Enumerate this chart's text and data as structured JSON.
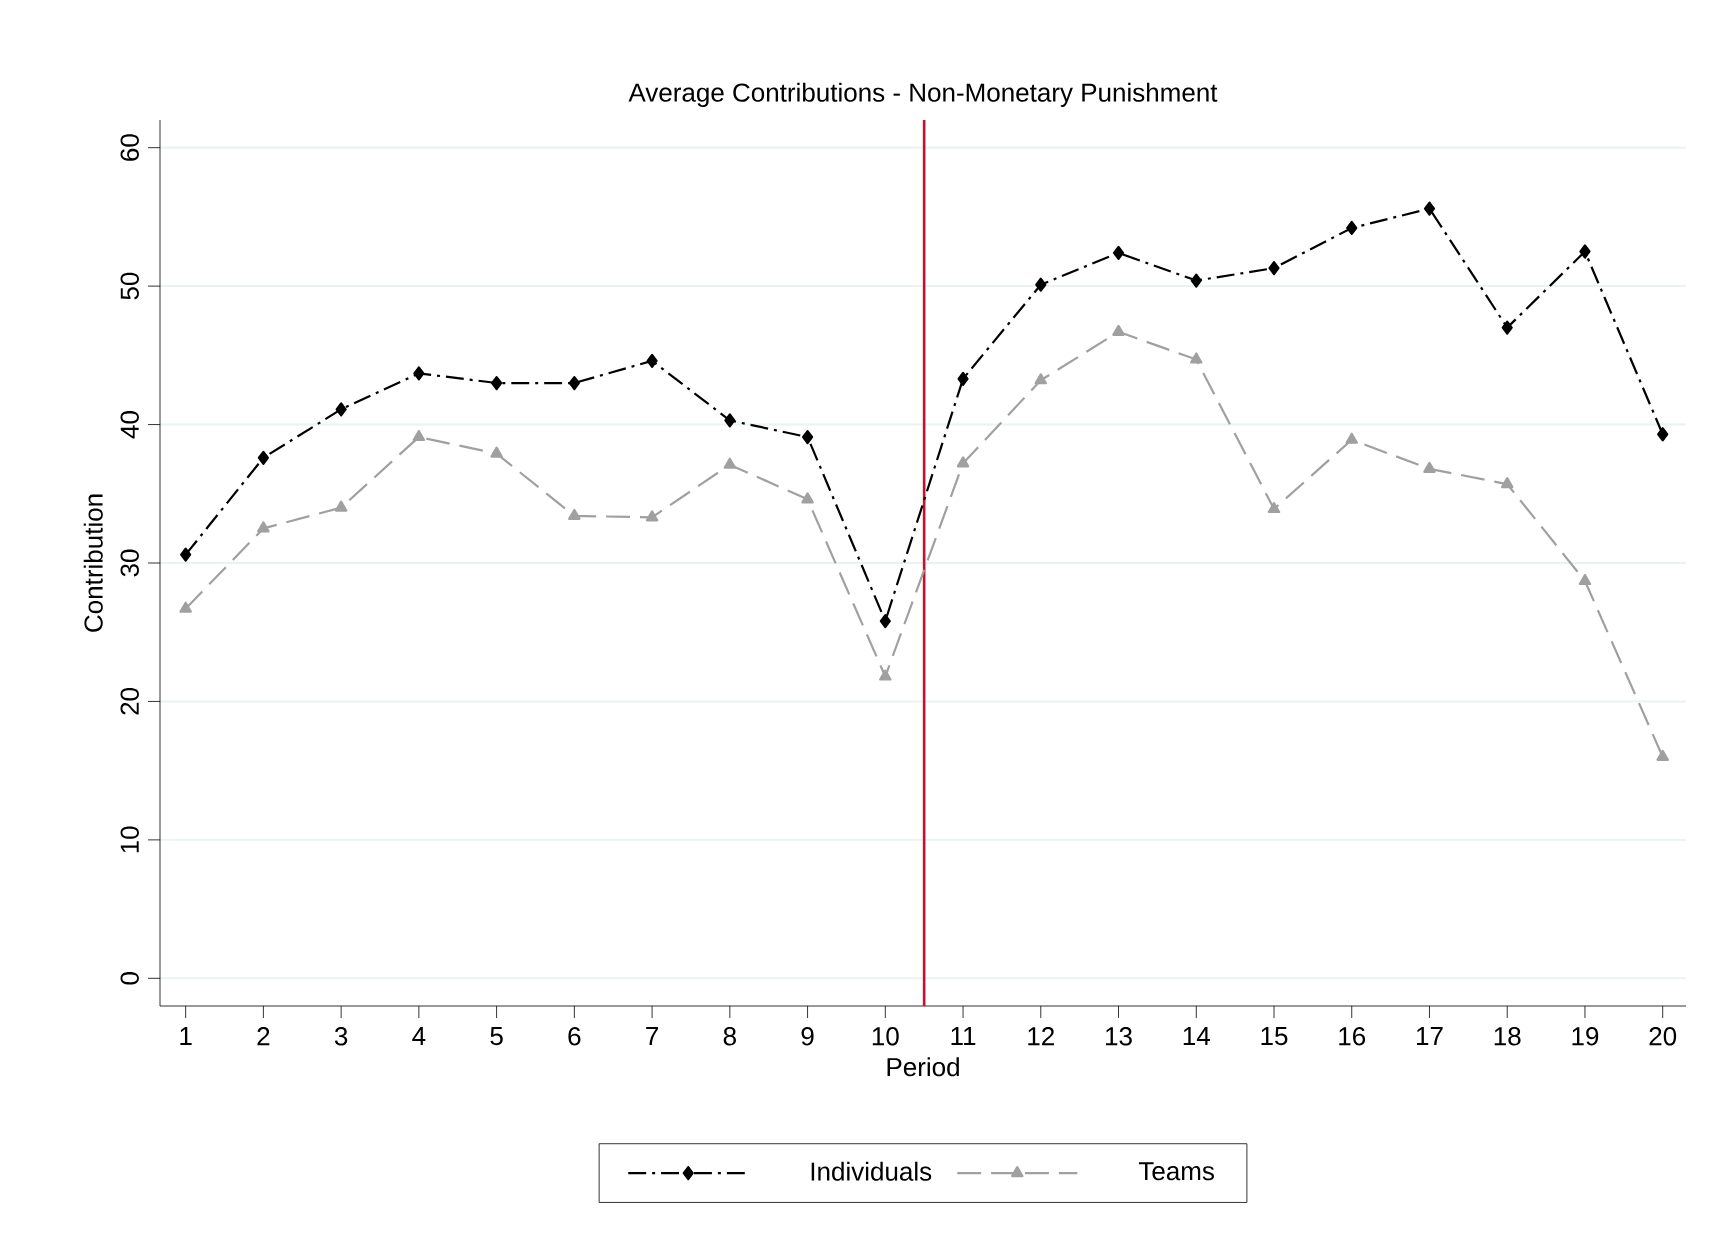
{
  "chart_data": {
    "type": "line",
    "title": "Average Contributions - Non-Monetary Punishment",
    "xlabel": "Period",
    "ylabel": "Contribution",
    "x": [
      1,
      2,
      3,
      4,
      5,
      6,
      7,
      8,
      9,
      10,
      11,
      12,
      13,
      14,
      15,
      16,
      17,
      18,
      19,
      20
    ],
    "series": [
      {
        "name": "Individuals",
        "color": "#000000",
        "marker": "diamond",
        "line_style": "dashdot",
        "values": [
          30.6,
          37.6,
          41.1,
          43.7,
          43.0,
          43.0,
          44.6,
          40.3,
          39.1,
          25.8,
          43.3,
          50.1,
          52.4,
          50.4,
          51.3,
          54.2,
          55.6,
          47.0,
          52.5,
          39.3
        ]
      },
      {
        "name": "Teams",
        "color": "#a0a0a0",
        "marker": "triangle",
        "line_style": "dashed",
        "values": [
          26.7,
          32.5,
          34.0,
          39.1,
          37.9,
          33.4,
          33.3,
          37.1,
          34.6,
          21.8,
          37.2,
          43.2,
          46.7,
          44.7,
          33.9,
          38.9,
          36.8,
          35.7,
          28.7,
          16.0
        ]
      }
    ],
    "xlim": [
      0.67,
      20.3
    ],
    "ylim": [
      -2,
      62
    ],
    "xticks": [
      1,
      2,
      3,
      4,
      5,
      6,
      7,
      8,
      9,
      10,
      11,
      12,
      13,
      14,
      15,
      16,
      17,
      18,
      19,
      20
    ],
    "yticks": [
      0,
      10,
      20,
      30,
      40,
      50,
      60
    ],
    "ref_lines": [
      {
        "axis": "x",
        "value": 10.5,
        "color": "#c8102e"
      }
    ],
    "grid": "y",
    "legend": "bottom"
  }
}
